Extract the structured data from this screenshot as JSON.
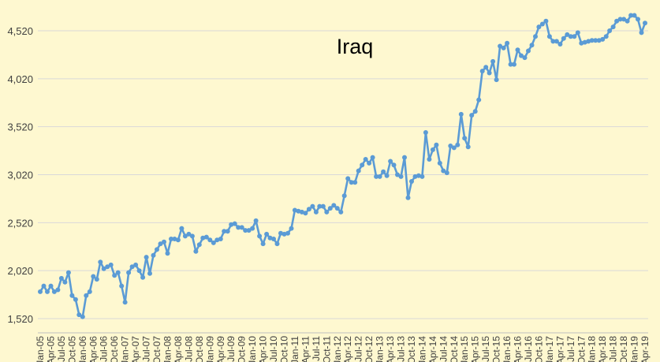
{
  "chart_data": {
    "type": "line",
    "title": "Iraq",
    "xlabel": "",
    "ylabel": "",
    "start": "Jan-05",
    "x_tick_labels": [
      "Jan-05",
      "Apr-05",
      "Jul-05",
      "Oct-05",
      "Jan-06",
      "Apr-06",
      "Jul-06",
      "Oct-06",
      "Jan-07",
      "Apr-07",
      "Jul-07",
      "Oct-07",
      "Jan-08",
      "Apr-08",
      "Jul-08",
      "Oct-08",
      "Jan-09",
      "Apr-09",
      "Jul-09",
      "Oct-09",
      "Jan-10",
      "Apr-10",
      "Jul-10",
      "Oct-10",
      "Jan-11",
      "Apr-11",
      "Jul-11",
      "Oct-11",
      "Jan-12",
      "Apr-12",
      "Jul-12",
      "Oct-12",
      "Jan-13",
      "Apr-13",
      "Jul-13",
      "Oct-13",
      "Jan-14",
      "Apr-14",
      "Jul-14",
      "Oct-14",
      "Jan-15",
      "Apr-15",
      "Jul-15",
      "Oct-15",
      "Jan-16",
      "Apr-16",
      "Jul-16",
      "Oct-16",
      "Jan-17",
      "Apr-17",
      "Jul-17",
      "Oct-17",
      "Jan-18",
      "Apr-18",
      "Jul-18",
      "Oct-18",
      "Jan-19",
      "Apr-19"
    ],
    "y_ticks": [
      1520,
      2020,
      2520,
      3020,
      3520,
      4020,
      4520
    ],
    "y_tick_labels": [
      "1,520",
      "2,020",
      "2,520",
      "3,020",
      "3,520",
      "4,020",
      "4,520"
    ],
    "ylim": [
      1520,
      4800
    ],
    "grid": true,
    "legend": "none",
    "line_color": "#5B9BD5",
    "series": [
      {
        "values": [
          1800,
          1860,
          1800,
          1860,
          1800,
          1820,
          1940,
          1900,
          2000,
          1760,
          1720,
          1560,
          1540,
          1760,
          1800,
          1960,
          1930,
          2110,
          2040,
          2060,
          2080,
          1970,
          2000,
          1860,
          1690,
          2000,
          2060,
          2080,
          2020,
          1950,
          2160,
          1990,
          2180,
          2240,
          2300,
          2320,
          2200,
          2350,
          2350,
          2340,
          2460,
          2380,
          2400,
          2380,
          2220,
          2290,
          2360,
          2370,
          2340,
          2310,
          2340,
          2350,
          2430,
          2430,
          2500,
          2510,
          2470,
          2470,
          2440,
          2440,
          2460,
          2540,
          2380,
          2300,
          2400,
          2360,
          2350,
          2300,
          2410,
          2400,
          2410,
          2460,
          2650,
          2640,
          2630,
          2620,
          2660,
          2690,
          2630,
          2690,
          2690,
          2630,
          2670,
          2700,
          2670,
          2630,
          2800,
          2980,
          2940,
          2940,
          3060,
          3120,
          3180,
          3140,
          3200,
          3000,
          3000,
          3050,
          3010,
          3160,
          3120,
          3020,
          3000,
          3200,
          2780,
          2950,
          3000,
          3010,
          3000,
          3460,
          3180,
          3280,
          3330,
          3140,
          3060,
          3040,
          3320,
          3300,
          3330,
          3650,
          3400,
          3310,
          3640,
          3680,
          3800,
          4100,
          4140,
          4080,
          4200,
          4010,
          4360,
          4340,
          4390,
          4170,
          4170,
          4320,
          4260,
          4240,
          4310,
          4370,
          4460,
          4560,
          4590,
          4620,
          4460,
          4410,
          4410,
          4380,
          4440,
          4480,
          4460,
          4460,
          4500,
          4390,
          4400,
          4410,
          4420,
          4420,
          4420,
          4430,
          4460,
          4520,
          4560,
          4620,
          4640,
          4640,
          4620,
          4680,
          4680,
          4640,
          4500,
          4600
        ]
      }
    ]
  }
}
